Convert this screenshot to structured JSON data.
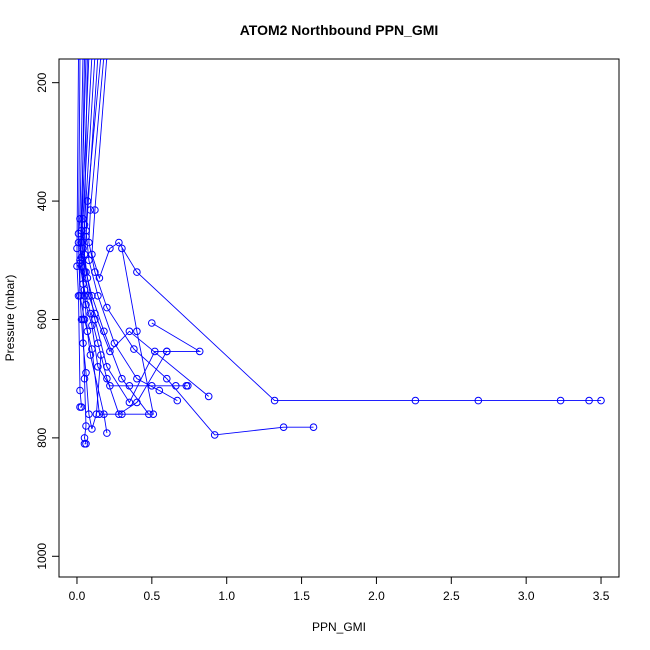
{
  "chart_data": {
    "type": "scatter",
    "title": "ATOM2 Northbound PPN_GMI",
    "xlabel": "PPN_GMI",
    "ylabel": "Pressure (mbar)",
    "xlim": [
      -0.12,
      3.62
    ],
    "ylim": [
      1035,
      160
    ],
    "y_reversed": true,
    "x_ticks": [
      0.0,
      0.5,
      1.0,
      1.5,
      2.0,
      2.5,
      3.0,
      3.5
    ],
    "x_tick_labels": [
      "0.0",
      "0.5",
      "1.0",
      "1.5",
      "2.0",
      "2.5",
      "3.0",
      "3.5"
    ],
    "y_ticks": [
      200,
      400,
      600,
      800,
      1000
    ],
    "y_tick_labels": [
      "200",
      "400",
      "600",
      "800",
      "1000"
    ],
    "grid": false,
    "legend": "none",
    "series_color": "#0000ff",
    "marker": "open-circle",
    "series": [
      {
        "points": [
          [
            0.02,
            155
          ],
          [
            0.01,
            470
          ],
          [
            0.02,
            560
          ],
          [
            0.03,
            600
          ],
          [
            0.04,
            640
          ],
          [
            0.06,
            690
          ],
          [
            0.08,
            760
          ],
          [
            0.1,
            785
          ],
          [
            0.13,
            760
          ],
          [
            0.16,
            660
          ]
        ]
      },
      {
        "points": [
          [
            0.04,
            155
          ],
          [
            0.02,
            430
          ],
          [
            0.01,
            455
          ],
          [
            0.03,
            495
          ],
          [
            0.05,
            560
          ],
          [
            0.07,
            620
          ],
          [
            0.09,
            660
          ],
          [
            0.18,
            760
          ],
          [
            0.2,
            792
          ]
        ]
      },
      {
        "points": [
          [
            0.06,
            155
          ],
          [
            0.02,
            500
          ],
          [
            0.02,
            560
          ],
          [
            0.05,
            600
          ],
          [
            0.1,
            650
          ],
          [
            0.15,
            760
          ],
          [
            0.3,
            760
          ],
          [
            0.51,
            760
          ],
          [
            0.4,
            620
          ],
          [
            0.3,
            480
          ]
        ]
      },
      {
        "points": [
          [
            0.08,
            155
          ],
          [
            0.03,
            450
          ],
          [
            0.02,
            505
          ],
          [
            0.04,
            540
          ],
          [
            0.06,
            575
          ],
          [
            0.1,
            610
          ],
          [
            0.14,
            680
          ],
          [
            0.22,
            712
          ],
          [
            0.35,
            712
          ],
          [
            0.5,
            712
          ],
          [
            0.66,
            712
          ],
          [
            0.73,
            712
          ],
          [
            0.74,
            712
          ]
        ]
      },
      {
        "points": [
          [
            0.1,
            155
          ],
          [
            0.04,
            430
          ],
          [
            0.03,
            510
          ],
          [
            0.05,
            550
          ],
          [
            0.09,
            590
          ],
          [
            0.14,
            640
          ],
          [
            0.2,
            700
          ],
          [
            0.28,
            760
          ],
          [
            0.4,
            740
          ],
          [
            0.6,
            654
          ],
          [
            0.82,
            654
          ],
          [
            0.5,
            606
          ]
        ]
      },
      {
        "points": [
          [
            0.12,
            155
          ],
          [
            0.05,
            440
          ],
          [
            0.04,
            480
          ],
          [
            0.06,
            520
          ],
          [
            0.1,
            560
          ],
          [
            0.18,
            620
          ],
          [
            0.3,
            700
          ],
          [
            0.48,
            760
          ]
        ]
      },
      {
        "points": [
          [
            0.14,
            155
          ],
          [
            0.06,
            460
          ],
          [
            0.05,
            490
          ],
          [
            0.07,
            530
          ],
          [
            0.12,
            600
          ],
          [
            0.2,
            680
          ],
          [
            0.35,
            740
          ],
          [
            0.52,
            654
          ],
          [
            0.6,
            654
          ]
        ]
      },
      {
        "points": [
          [
            0.16,
            155
          ],
          [
            0.07,
            400
          ],
          [
            0.06,
            450
          ],
          [
            0.08,
            500
          ],
          [
            0.14,
            560
          ],
          [
            0.25,
            640
          ],
          [
            0.4,
            700
          ],
          [
            0.55,
            720
          ],
          [
            0.67,
            737
          ]
        ]
      },
      {
        "points": [
          [
            0.05,
            155
          ],
          [
            0.03,
            470
          ],
          [
            0.05,
            520
          ],
          [
            0.08,
            560
          ],
          [
            0.12,
            590
          ],
          [
            0.22,
            654
          ],
          [
            0.35,
            620
          ],
          [
            0.88,
            730
          ]
        ]
      },
      {
        "points": [
          [
            0.18,
            155
          ],
          [
            0.09,
            415
          ],
          [
            0.08,
            470
          ],
          [
            0.12,
            520
          ],
          [
            0.2,
            580
          ],
          [
            0.38,
            650
          ],
          [
            0.6,
            700
          ],
          [
            0.92,
            795
          ],
          [
            1.38,
            782
          ],
          [
            1.58,
            782
          ]
        ]
      },
      {
        "points": [
          [
            0.2,
            155
          ],
          [
            0.12,
            415
          ],
          [
            0.1,
            490
          ],
          [
            0.15,
            530
          ],
          [
            0.22,
            480
          ],
          [
            0.28,
            470
          ],
          [
            0.4,
            520
          ],
          [
            1.32,
            737
          ],
          [
            2.26,
            737
          ],
          [
            2.68,
            737
          ],
          [
            3.23,
            737
          ],
          [
            3.42,
            737
          ],
          [
            3.5,
            737
          ]
        ]
      },
      {
        "points": [
          [
            0.01,
            155
          ],
          [
            0.0,
            480
          ],
          [
            0.0,
            510
          ],
          [
            0.01,
            560
          ],
          [
            0.02,
            720
          ],
          [
            0.03,
            748
          ],
          [
            0.02,
            748
          ]
        ]
      },
      {
        "points": [
          [
            0.07,
            155
          ],
          [
            0.04,
            600
          ],
          [
            0.05,
            700
          ],
          [
            0.06,
            780
          ],
          [
            0.05,
            800
          ],
          [
            0.06,
            810
          ],
          [
            0.05,
            810
          ]
        ]
      }
    ]
  }
}
